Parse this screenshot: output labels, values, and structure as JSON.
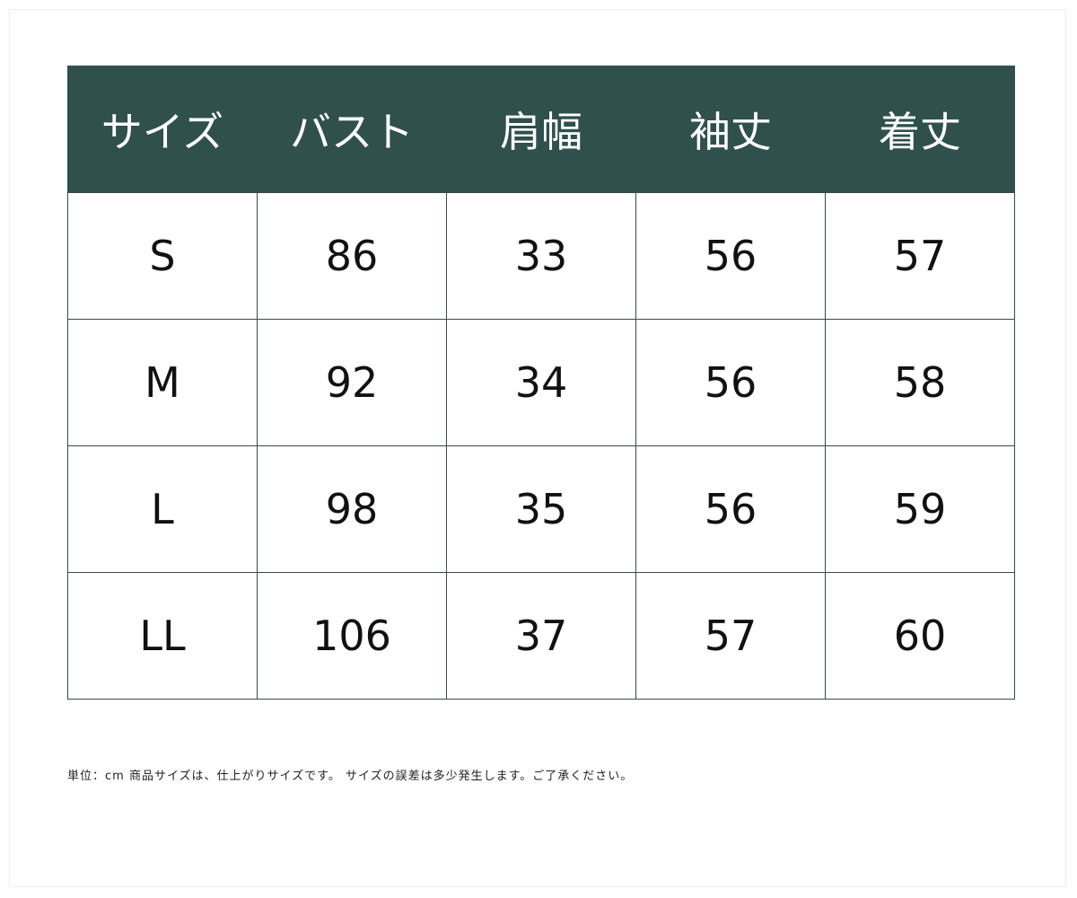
{
  "colors": {
    "header_bg": "#2f504c",
    "header_text": "#ffffff"
  },
  "table": {
    "headers": [
      "サイズ",
      "バスト",
      "肩幅",
      "袖丈",
      "着丈"
    ],
    "rows": [
      [
        "S",
        "86",
        "33",
        "56",
        "57"
      ],
      [
        "M",
        "92",
        "34",
        "56",
        "58"
      ],
      [
        "L",
        "98",
        "35",
        "56",
        "59"
      ],
      [
        "LL",
        "106",
        "37",
        "57",
        "60"
      ]
    ]
  },
  "note": "単位：cm 商品サイズは、仕上がりサイズです。 サイズの誤差は多少発生します。ご了承ください。"
}
